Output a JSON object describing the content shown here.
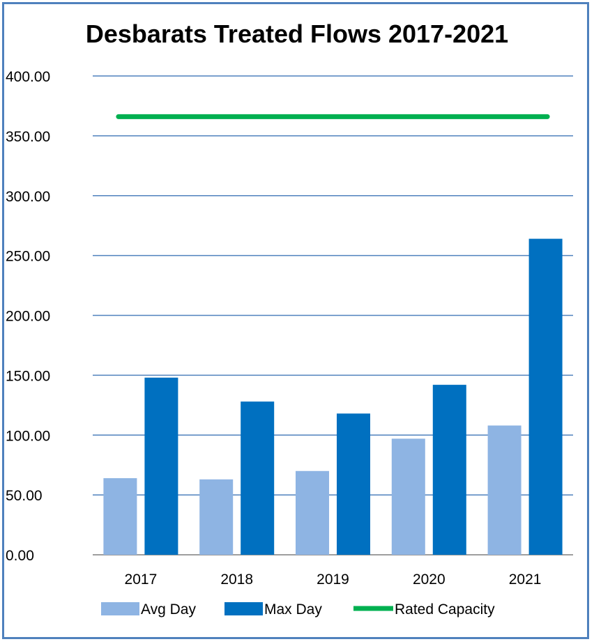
{
  "chart_data": {
    "type": "bar",
    "title": "Desbarats Treated Flows 2017-2021",
    "categories": [
      "2017",
      "2018",
      "2019",
      "2020",
      "2021"
    ],
    "series": [
      {
        "name": "Avg Day",
        "kind": "bar",
        "color": "#8eb4e3",
        "values": [
          64,
          63,
          70,
          97,
          108
        ]
      },
      {
        "name": "Max Day",
        "kind": "bar",
        "color": "#0070c0",
        "values": [
          148,
          128,
          118,
          142,
          264
        ]
      },
      {
        "name": "Rated Capacity",
        "kind": "line",
        "color": "#00b050",
        "values": [
          366,
          366,
          366,
          366,
          366
        ]
      }
    ],
    "ylim": [
      0,
      400
    ],
    "yticks": [
      "0.00",
      "50.00",
      "100.00",
      "150.00",
      "200.00",
      "250.00",
      "300.00",
      "350.00",
      "400.00"
    ],
    "grid": true,
    "legend": "bottom",
    "gridline_color": "#4f81bd",
    "frame_color": "#4f81bd"
  }
}
